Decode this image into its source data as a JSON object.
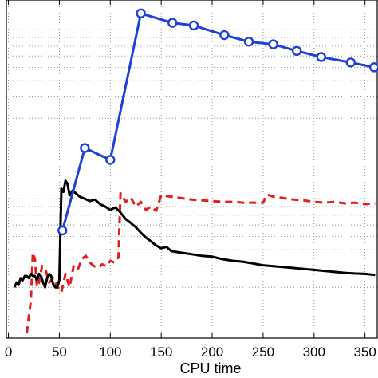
{
  "chart_data": {
    "type": "line",
    "xlabel": "CPU time",
    "ylabel": "",
    "title": "",
    "xlim": [
      -2,
      362
    ],
    "x_ticks": [
      0,
      50,
      100,
      150,
      200,
      250,
      300,
      350
    ],
    "x_tick_labels": [
      "0",
      "50",
      "100",
      "150",
      "200",
      "250",
      "300",
      "350"
    ],
    "y_scale": "log",
    "ylim": [
      1.5,
      150
    ],
    "grid": true,
    "legend": "none",
    "series": [
      {
        "color": "#1f3fd6",
        "line_style": "solid",
        "marker": "circle",
        "x": [
          53,
          75,
          100,
          130,
          161,
          182,
          212,
          236,
          260,
          283,
          307,
          336,
          359
        ],
        "y": [
          6.5,
          20,
          17,
          125,
          110,
          106,
          93,
          85,
          82,
          75,
          69,
          64,
          60
        ]
      },
      {
        "color": "#000000",
        "line_style": "solid",
        "marker": "none",
        "x": [
          6,
          8,
          10,
          12,
          14,
          16,
          18,
          20,
          22,
          24,
          26,
          28,
          30,
          32,
          34,
          36,
          38,
          40,
          42,
          44,
          46,
          48,
          50,
          52,
          54,
          56,
          58,
          60,
          63,
          66,
          70,
          75,
          80,
          85,
          90,
          95,
          100,
          105,
          110,
          115,
          120,
          125,
          130,
          135,
          140,
          145,
          150,
          155,
          160,
          170,
          180,
          190,
          200,
          210,
          220,
          230,
          240,
          250,
          260,
          270,
          280,
          290,
          300,
          310,
          320,
          330,
          340,
          350,
          360
        ],
        "y": [
          3.0,
          3.2,
          3.1,
          3.4,
          3.3,
          3.5,
          3.5,
          3.4,
          3.6,
          3.5,
          3.5,
          3.3,
          3.6,
          3.5,
          3.2,
          3.0,
          3.4,
          3.6,
          3.5,
          3.1,
          3.0,
          3.0,
          3.3,
          11.5,
          11.0,
          12.8,
          12.3,
          10.5,
          11.2,
          10.8,
          10.3,
          10.0,
          9.7,
          9.9,
          9.3,
          9.0,
          8.6,
          8.9,
          8.3,
          7.6,
          7.2,
          6.8,
          6.3,
          5.9,
          5.6,
          5.3,
          5.1,
          5.2,
          4.9,
          4.8,
          4.7,
          4.6,
          4.55,
          4.4,
          4.3,
          4.25,
          4.15,
          4.05,
          4.0,
          3.95,
          3.9,
          3.85,
          3.8,
          3.75,
          3.7,
          3.65,
          3.62,
          3.6,
          3.55
        ]
      },
      {
        "color": "#e02020",
        "line_style": "dashed",
        "marker": "none",
        "x": [
          18,
          20,
          22,
          24,
          26,
          28,
          30,
          33,
          36,
          40,
          44,
          48,
          52,
          56,
          60,
          64,
          68,
          72,
          76,
          80,
          84,
          88,
          92,
          96,
          100,
          104,
          108,
          110,
          115,
          120,
          125,
          130,
          135,
          140,
          145,
          150,
          160,
          170,
          180,
          190,
          200,
          210,
          220,
          230,
          240,
          250,
          254,
          260,
          270,
          280,
          290,
          300,
          310,
          320,
          330,
          340,
          350,
          360
        ],
        "y": [
          1.6,
          2.0,
          2.5,
          4.8,
          4.4,
          3.0,
          3.2,
          4.0,
          3.9,
          3.2,
          3.4,
          3.0,
          2.8,
          3.6,
          3.0,
          4.0,
          3.8,
          4.4,
          4.6,
          4.2,
          4.0,
          3.9,
          4.1,
          4.0,
          4.3,
          4.2,
          4.5,
          10.8,
          9.6,
          10.2,
          9.0,
          9.6,
          8.6,
          9.0,
          8.5,
          10.5,
          10.3,
          10.1,
          9.9,
          9.8,
          9.7,
          9.6,
          9.6,
          9.5,
          9.5,
          9.5,
          10.6,
          10.3,
          10.1,
          9.9,
          9.8,
          9.6,
          9.5,
          9.6,
          9.4,
          9.5,
          9.3,
          9.4
        ]
      }
    ]
  }
}
